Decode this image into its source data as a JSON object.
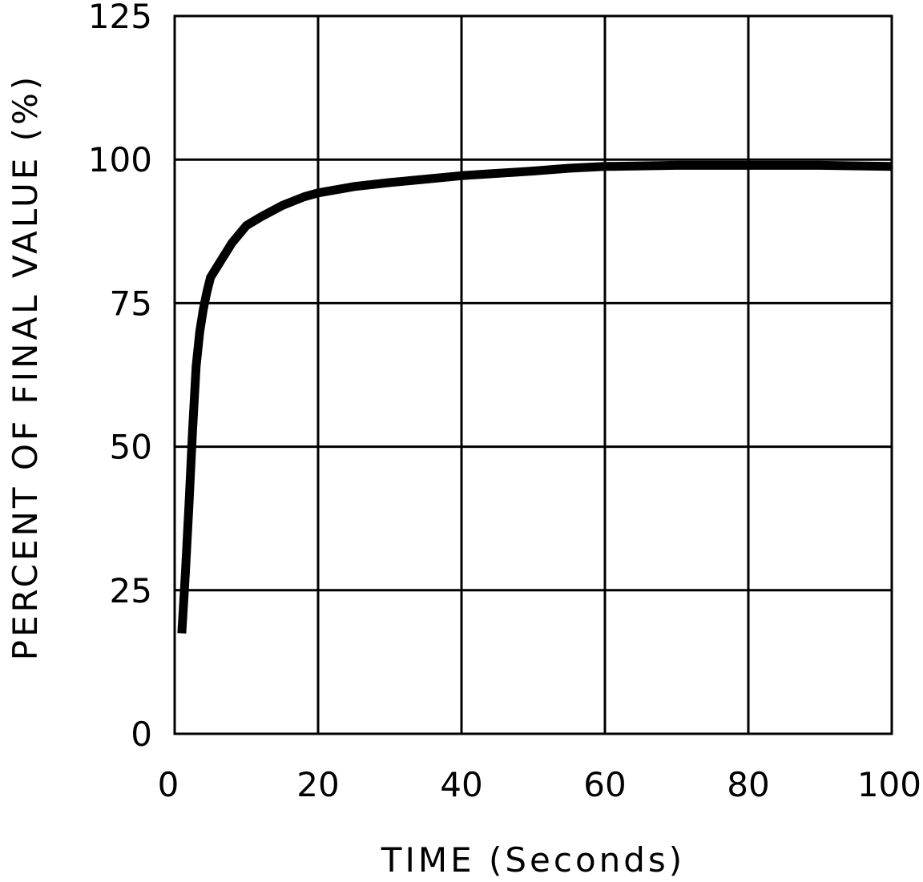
{
  "chart_data": {
    "type": "line",
    "title": "",
    "xlabel": "TIME (Seconds)",
    "ylabel": "PERCENT OF FINAL VALUE (%)",
    "xlim": [
      0,
      100
    ],
    "ylim": [
      0,
      125
    ],
    "x_ticks": [
      0,
      20,
      40,
      60,
      80,
      100
    ],
    "y_ticks": [
      0,
      25,
      50,
      75,
      100,
      125
    ],
    "x_tick_labels": [
      "0",
      "20",
      "40",
      "60",
      "80",
      "100"
    ],
    "y_tick_labels": [
      "0",
      "25",
      "50",
      "75",
      "100",
      "125"
    ],
    "grid": true,
    "line_color": "#000000",
    "series": [
      {
        "x": [
          1,
          1.5,
          2,
          2.5,
          3,
          3.5,
          4,
          4.5,
          5,
          6,
          8,
          10,
          12,
          15,
          18,
          20,
          25,
          30,
          35,
          40,
          45,
          50,
          55,
          60,
          70,
          80,
          90,
          100
        ],
        "y": [
          17.5,
          28,
          40,
          53,
          64,
          70,
          74,
          77,
          79.5,
          81.5,
          85.5,
          88.5,
          90,
          92,
          93.5,
          94.2,
          95.3,
          96,
          96.6,
          97.2,
          97.6,
          98,
          98.5,
          98.8,
          99,
          99,
          99,
          98.8
        ]
      }
    ]
  }
}
